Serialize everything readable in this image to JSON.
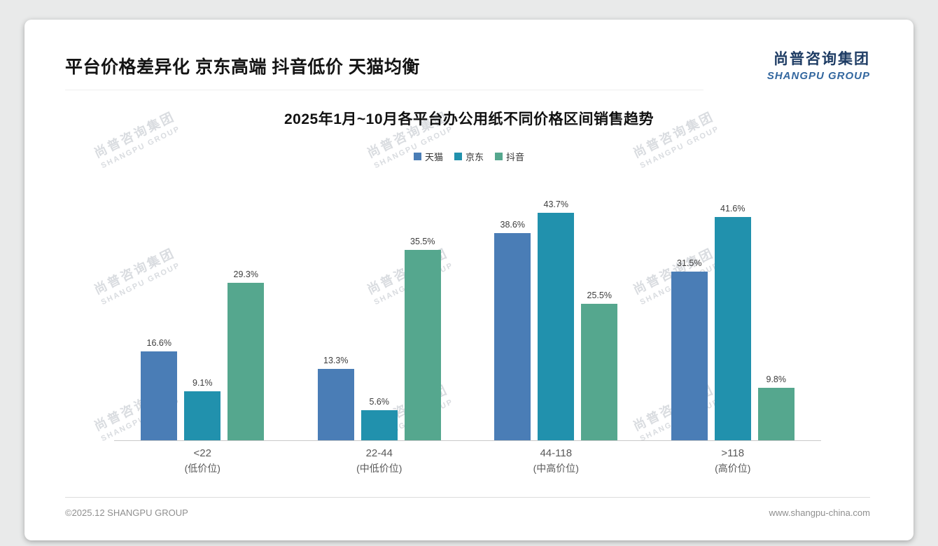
{
  "slide": {
    "title": "平台价格差异化 京东高端 抖音低价 天猫均衡",
    "logo_cn": "尚普咨询集团",
    "logo_en": "SHANGPU GROUP",
    "footer_left": "©2025.12 SHANGPU GROUP",
    "footer_right": "www.shangpu-china.com"
  },
  "watermark": {
    "cn": "尚普咨询集团",
    "en": "SHANGPU GROUP"
  },
  "chart_data": {
    "type": "bar",
    "title": "2025年1月~10月各平台办公用纸不同价格区间销售趋势",
    "categories": [
      "<22",
      "22-44",
      "44-118",
      ">118"
    ],
    "category_sublabels": [
      "(低价位)",
      "(中低价位)",
      "(中高价位)",
      "(高价位)"
    ],
    "series": [
      {
        "name": "天猫",
        "color": "#4a7db6",
        "values": [
          16.6,
          13.3,
          38.6,
          31.5
        ]
      },
      {
        "name": "京东",
        "color": "#2191ad",
        "values": [
          9.1,
          5.6,
          43.7,
          41.6
        ]
      },
      {
        "name": "抖音",
        "color": "#55a78e",
        "values": [
          29.3,
          35.5,
          25.5,
          9.8
        ]
      }
    ],
    "value_suffix": "%",
    "ylim": [
      0,
      45
    ],
    "legend_position": "top",
    "grid": false
  }
}
